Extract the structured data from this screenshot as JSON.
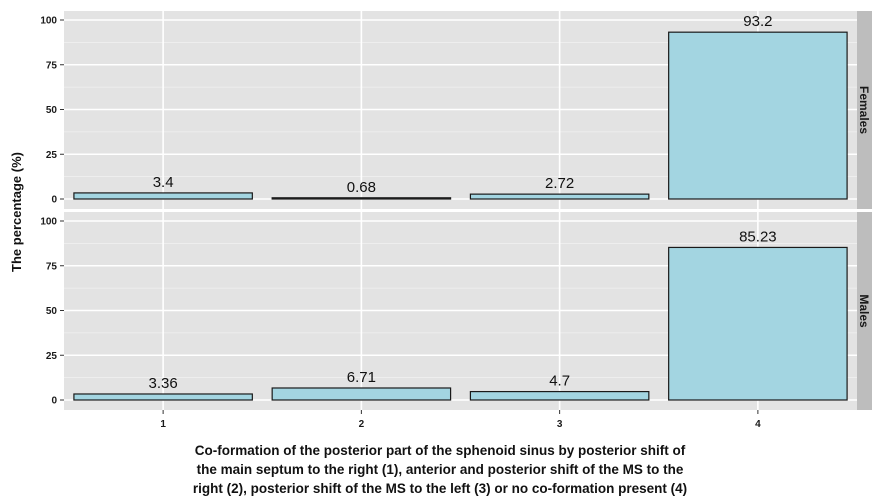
{
  "chart_data": {
    "type": "bar",
    "categories": [
      "1",
      "2",
      "3",
      "4"
    ],
    "panels": [
      {
        "name": "Females",
        "values": [
          3.4,
          0.68,
          2.72,
          93.2
        ],
        "labels": [
          "3.4",
          "0.68",
          "2.72",
          "93.2"
        ]
      },
      {
        "name": "Males",
        "values": [
          3.36,
          6.71,
          4.7,
          85.23
        ],
        "labels": [
          "3.36",
          "6.71",
          "4.7",
          "85.23"
        ]
      }
    ],
    "ylabel": "The percentage (%)",
    "xlabel_lines": [
      "Co-formation of the posterior part of the sphenoid sinus by posterior shift of",
      "the main septum to the right (1), anterior and posterior shift of the MS to the",
      "right (2), posterior shift of the MS to the left (3) or no co-formation present (4)"
    ],
    "yticks": [
      "0",
      "25",
      "50",
      "75",
      "100"
    ],
    "ylim": [
      0,
      100
    ],
    "grid": true,
    "colors": {
      "bar_fill": "#a3d5e1",
      "bar_stroke": "#1a1a1a",
      "panel_bg": "#e3e3e3",
      "strip_bg": "#bdbdbd",
      "grid": "#ffffff"
    }
  }
}
